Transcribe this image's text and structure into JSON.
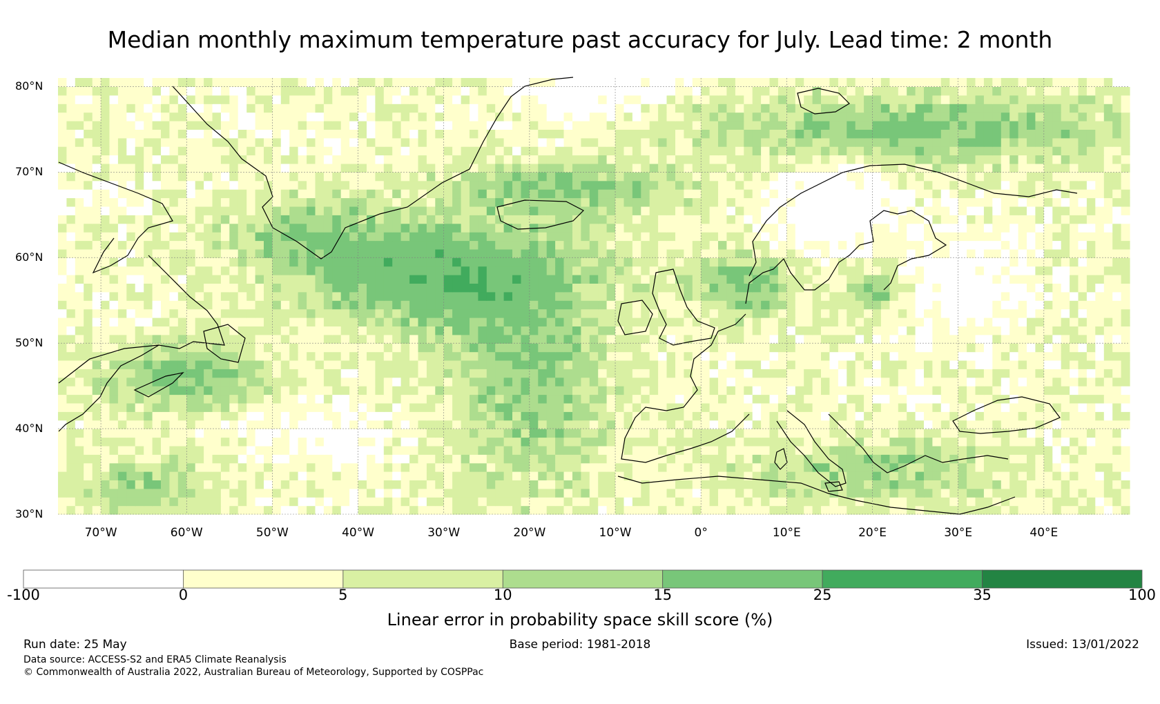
{
  "title": "Median monthly maximum temperature past accuracy for July. Lead time: 2 month",
  "map": {
    "lat_labels": [
      "80°N",
      "70°N",
      "60°N",
      "50°N",
      "40°N",
      "30°N"
    ],
    "lon_labels": [
      "70°W",
      "60°W",
      "50°W",
      "40°W",
      "30°W",
      "20°W",
      "10°W",
      "0°",
      "10°E",
      "20°E",
      "30°E",
      "40°E"
    ],
    "extent": {
      "lon_min": -75,
      "lon_max": 50,
      "lat_min": 30,
      "lat_max": 81
    }
  },
  "colorbar": {
    "ticks": [
      "-100",
      "0",
      "5",
      "10",
      "15",
      "25",
      "35",
      "100"
    ],
    "colors": [
      "#ffffff",
      "#ffffcc",
      "#d9f0a3",
      "#addd8e",
      "#78c679",
      "#41ab5d",
      "#238443"
    ],
    "label": "Linear error in probability space skill score (%)"
  },
  "footer": {
    "run_date": "Run date: 25 May",
    "base_period": "Base period: 1981-2018",
    "issued": "Issued: 13/01/2022",
    "data_source": "Data source: ACCESS-S2 and ERA5 Climate Reanalysis",
    "copyright": "© Commonwealth of Australia 2022, Australian Bureau of Meteorology, Supported by COSPPac"
  }
}
